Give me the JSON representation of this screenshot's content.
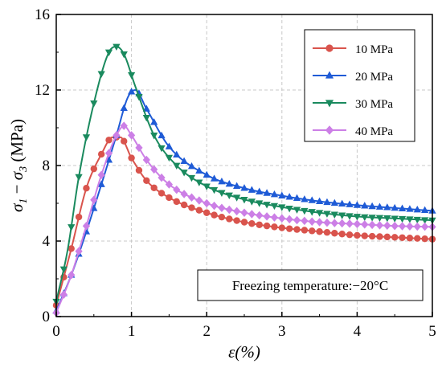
{
  "chart_data": {
    "type": "line",
    "xlabel": "ε(%)",
    "ylabel": "σ1 − σ3 (MPa)",
    "ylabel_parts": {
      "sigma1": "σ",
      "sub1": "1",
      "minus": " − ",
      "sigma3": "σ",
      "sub3": "3",
      "unit": " (MPa)"
    },
    "xlim": [
      0,
      5
    ],
    "ylim": [
      0,
      16
    ],
    "x_ticks": [
      0,
      1,
      2,
      3,
      4,
      5
    ],
    "y_ticks": [
      0,
      4,
      8,
      12,
      16
    ],
    "x_tick_labels": [
      "0",
      "1",
      "2",
      "3",
      "4",
      "5"
    ],
    "y_tick_labels": [
      "0",
      "4",
      "8",
      "12",
      "16"
    ],
    "grid": true,
    "legend_position": "top-right",
    "annotation": "Freezing temperature:−20°C",
    "series": [
      {
        "name": "10 MPa",
        "color": "#d9544d",
        "marker": "circle",
        "points": [
          [
            0,
            0.6
          ],
          [
            0.2,
            3.6
          ],
          [
            0.4,
            6.8
          ],
          [
            0.6,
            8.6
          ],
          [
            0.75,
            9.5
          ],
          [
            0.85,
            9.5
          ],
          [
            1.0,
            8.4
          ],
          [
            1.2,
            7.2
          ],
          [
            1.5,
            6.3
          ],
          [
            2.0,
            5.5
          ],
          [
            2.5,
            5.0
          ],
          [
            3.0,
            4.7
          ],
          [
            3.5,
            4.5
          ],
          [
            4.0,
            4.3
          ],
          [
            4.5,
            4.2
          ],
          [
            5.0,
            4.1
          ]
        ]
      },
      {
        "name": "20 MPa",
        "color": "#1f5bd6",
        "marker": "triangle-up",
        "points": [
          [
            0,
            0.3
          ],
          [
            0.2,
            2.2
          ],
          [
            0.4,
            4.5
          ],
          [
            0.6,
            7.0
          ],
          [
            0.8,
            9.6
          ],
          [
            0.95,
            11.6
          ],
          [
            1.05,
            12.0
          ],
          [
            1.2,
            11.0
          ],
          [
            1.5,
            9.0
          ],
          [
            2.0,
            7.5
          ],
          [
            2.5,
            6.8
          ],
          [
            3.0,
            6.4
          ],
          [
            3.5,
            6.1
          ],
          [
            4.0,
            5.9
          ],
          [
            4.5,
            5.75
          ],
          [
            5.0,
            5.6
          ]
        ]
      },
      {
        "name": "30 MPa",
        "color": "#1a8a5e",
        "marker": "triangle-down",
        "points": [
          [
            0,
            0.8
          ],
          [
            0.15,
            3.5
          ],
          [
            0.3,
            7.4
          ],
          [
            0.5,
            11.3
          ],
          [
            0.7,
            14.0
          ],
          [
            0.8,
            14.3
          ],
          [
            0.9,
            13.9
          ],
          [
            1.05,
            12.2
          ],
          [
            1.3,
            9.6
          ],
          [
            1.6,
            8.0
          ],
          [
            2.0,
            6.9
          ],
          [
            2.5,
            6.2
          ],
          [
            3.0,
            5.8
          ],
          [
            3.5,
            5.5
          ],
          [
            4.0,
            5.3
          ],
          [
            4.5,
            5.2
          ],
          [
            5.0,
            5.1
          ]
        ]
      },
      {
        "name": "40 MPa",
        "color": "#cc7fe6",
        "marker": "diamond",
        "points": [
          [
            0,
            0.2
          ],
          [
            0.2,
            2.2
          ],
          [
            0.4,
            4.8
          ],
          [
            0.6,
            7.5
          ],
          [
            0.8,
            9.6
          ],
          [
            0.9,
            10.1
          ],
          [
            1.0,
            9.6
          ],
          [
            1.2,
            8.3
          ],
          [
            1.5,
            7.0
          ],
          [
            2.0,
            6.0
          ],
          [
            2.5,
            5.5
          ],
          [
            3.0,
            5.2
          ],
          [
            3.5,
            5.0
          ],
          [
            4.0,
            4.9
          ],
          [
            4.5,
            4.8
          ],
          [
            5.0,
            4.75
          ]
        ]
      }
    ]
  }
}
